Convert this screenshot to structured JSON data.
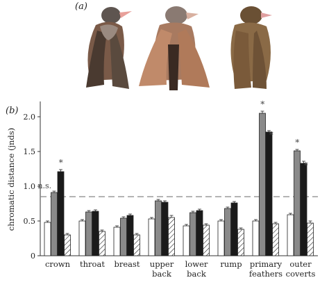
{
  "figure": {
    "panel_a_label": "(a)",
    "panel_b_label": "(b)",
    "birds": [
      {
        "name": "bird-photo-left",
        "plumage": "#6b5446"
      },
      {
        "name": "bird-photo-center",
        "plumage": "#8a6a58"
      },
      {
        "name": "bird-photo-right",
        "plumage": "#7a5a3c"
      }
    ]
  },
  "chart_data": {
    "type": "bar",
    "ylabel": "chromatic distance (jnds)",
    "ylim": [
      0,
      2.2
    ],
    "yticks": [
      0,
      0.5,
      1.0,
      1.5,
      2.0
    ],
    "ytick_labels": [
      "0",
      "0.5",
      "1.0",
      "1.5",
      "2.0"
    ],
    "threshold": 0.85,
    "categories": [
      [
        "crown"
      ],
      [
        "throat"
      ],
      [
        "breast"
      ],
      [
        "upper",
        "back"
      ],
      [
        "lower",
        "back"
      ],
      [
        "rump"
      ],
      [
        "primary",
        "feathers"
      ],
      [
        "outer",
        "coverts"
      ]
    ],
    "series": [
      {
        "fill": "#ffffff",
        "pattern": "none",
        "values": [
          0.48,
          0.5,
          0.41,
          0.53,
          0.43,
          0.5,
          0.5,
          0.59
        ],
        "errors": [
          0.02,
          0.02,
          0.02,
          0.02,
          0.02,
          0.02,
          0.02,
          0.02
        ]
      },
      {
        "fill": "#8a8a8a",
        "pattern": "none",
        "values": [
          0.91,
          0.63,
          0.54,
          0.79,
          0.62,
          0.68,
          2.05,
          1.51
        ],
        "errors": [
          0.02,
          0.02,
          0.02,
          0.02,
          0.02,
          0.02,
          0.03,
          0.02
        ]
      },
      {
        "fill": "#1a1a1a",
        "pattern": "none",
        "values": [
          1.21,
          0.64,
          0.58,
          0.77,
          0.65,
          0.76,
          1.78,
          1.33
        ],
        "errors": [
          0.03,
          0.02,
          0.02,
          0.02,
          0.02,
          0.02,
          0.02,
          0.03
        ]
      },
      {
        "fill": "#ffffff",
        "pattern": "hatch",
        "values": [
          0.3,
          0.35,
          0.3,
          0.55,
          0.44,
          0.38,
          0.46,
          0.47
        ],
        "errors": [
          0.02,
          0.02,
          0.02,
          0.03,
          0.02,
          0.02,
          0.02,
          0.03
        ]
      }
    ],
    "annotations": [
      {
        "text": "n.s.",
        "category": 0,
        "series": 1
      },
      {
        "text": "*",
        "category": 0,
        "series": 2
      },
      {
        "text": "*",
        "category": 6,
        "series": 1
      },
      {
        "text": "*",
        "category": 6,
        "series": 2
      },
      {
        "text": "*",
        "category": 7,
        "series": 1
      },
      {
        "text": "*",
        "category": 7,
        "series": 2
      }
    ]
  }
}
